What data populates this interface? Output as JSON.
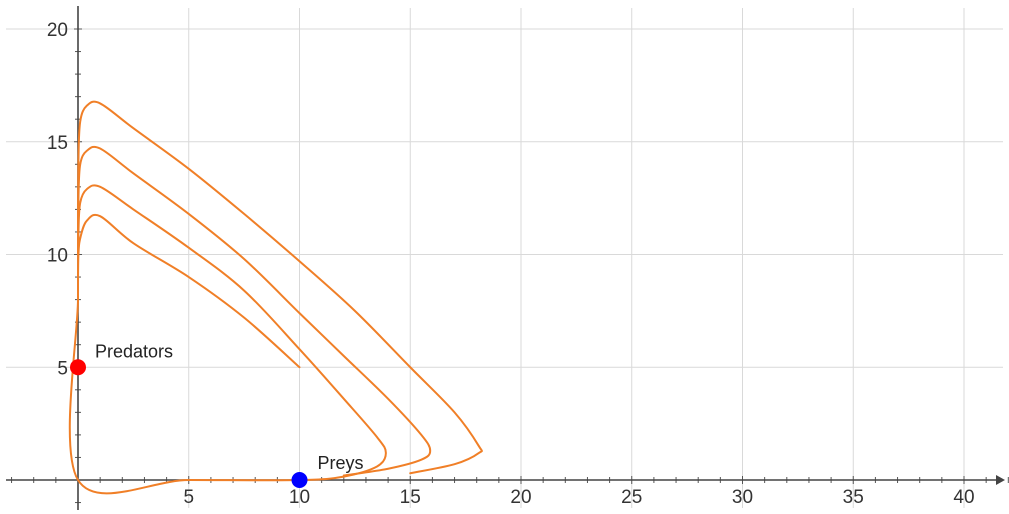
{
  "chart_data": {
    "type": "line",
    "title": "",
    "xlabel": "",
    "ylabel": "",
    "xlim": [
      -3.1,
      42
    ],
    "ylim": [
      -1.6,
      20.8
    ],
    "grid": true,
    "x_ticks": [
      5,
      10,
      15,
      20,
      25,
      30,
      35,
      40
    ],
    "y_ticks": [
      5,
      10,
      15,
      20
    ],
    "curve_color": "#f07f27",
    "series": [
      {
        "values": [
          [
            10,
            5
          ],
          [
            7.5,
            7.2
          ],
          [
            5,
            9.0
          ],
          [
            2.5,
            10.5
          ],
          [
            1.0,
            11.7
          ],
          [
            0.4,
            11.5
          ],
          [
            0.12,
            10.8
          ],
          [
            0.02,
            10.0
          ],
          [
            0,
            8
          ],
          [
            0,
            0
          ],
          [
            5,
            0
          ],
          [
            10,
            0
          ],
          [
            12,
            0.15
          ],
          [
            13.5,
            0.6
          ],
          [
            13.9,
            1.2
          ],
          [
            13.5,
            1.9
          ],
          [
            12,
            3.6
          ],
          [
            10,
            5.8
          ],
          [
            7.5,
            8.4
          ],
          [
            5,
            10.3
          ],
          [
            2.5,
            12.0
          ],
          [
            1.0,
            13.0
          ],
          [
            0.4,
            12.9
          ],
          [
            0.1,
            12.3
          ],
          [
            0.02,
            11
          ],
          [
            0,
            9
          ]
        ]
      },
      {
        "values": [
          [
            12,
            0.2
          ],
          [
            14,
            0.5
          ],
          [
            15.5,
            0.9
          ],
          [
            15.9,
            1.3
          ],
          [
            15.5,
            2.0
          ],
          [
            14,
            3.6
          ],
          [
            12,
            5.5
          ],
          [
            10,
            7.4
          ],
          [
            7.5,
            9.8
          ],
          [
            5,
            11.8
          ],
          [
            2.5,
            13.6
          ],
          [
            1.0,
            14.7
          ],
          [
            0.4,
            14.6
          ],
          [
            0.1,
            14.0
          ],
          [
            0.02,
            12.5
          ],
          [
            0,
            10
          ]
        ]
      },
      {
        "values": [
          [
            15,
            0.3
          ],
          [
            17,
            0.7
          ],
          [
            18.1,
            1.2
          ],
          [
            18.1,
            1.5
          ],
          [
            17,
            3.0
          ],
          [
            15,
            5.0
          ],
          [
            12.5,
            7.5
          ],
          [
            10,
            9.7
          ],
          [
            7.5,
            11.8
          ],
          [
            5,
            13.8
          ],
          [
            2.5,
            15.6
          ],
          [
            1.0,
            16.7
          ],
          [
            0.4,
            16.6
          ],
          [
            0.1,
            15.9
          ],
          [
            0.02,
            14.2
          ],
          [
            0,
            11
          ]
        ]
      }
    ],
    "points": [
      {
        "name": "Predators",
        "x": 0,
        "y": 5,
        "color": "#ff0000"
      },
      {
        "name": "Preys",
        "x": 10,
        "y": 0,
        "color": "#0000ff"
      }
    ]
  }
}
